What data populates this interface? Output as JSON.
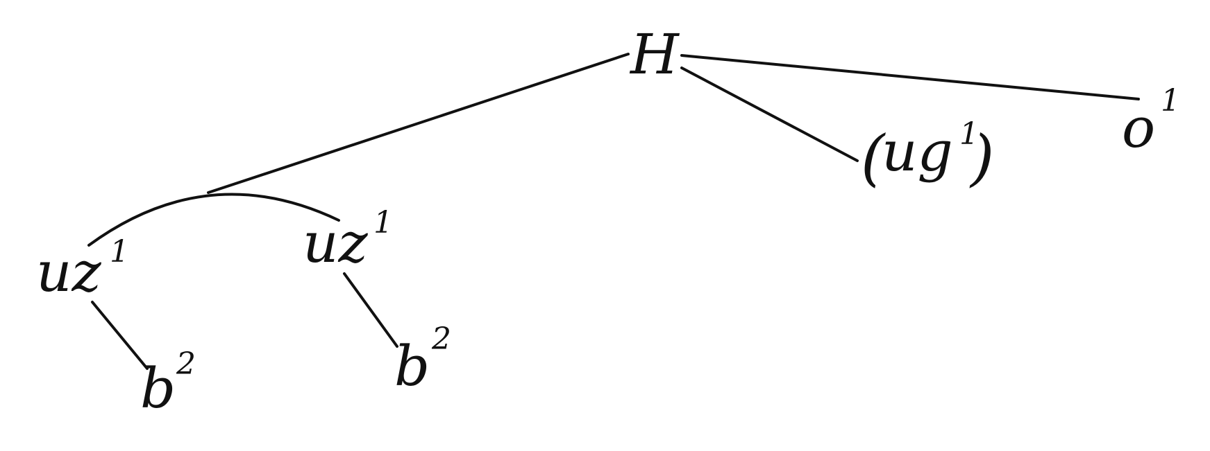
{
  "nodes": {
    "root": {
      "label": "H"
    },
    "left_uz": {
      "label": "uz",
      "sup": "1"
    },
    "mid_uz": {
      "label": "uz",
      "sup": "1"
    },
    "left_b": {
      "label": "b",
      "sup": "2"
    },
    "mid_b": {
      "label": "b",
      "sup": "2"
    },
    "ug": {
      "open": "(",
      "label": "ug",
      "sup": "1",
      "close": ")"
    },
    "o": {
      "label": "o",
      "sup": "1"
    }
  },
  "colors": {
    "ink": "#111111",
    "background": "#ffffff"
  }
}
